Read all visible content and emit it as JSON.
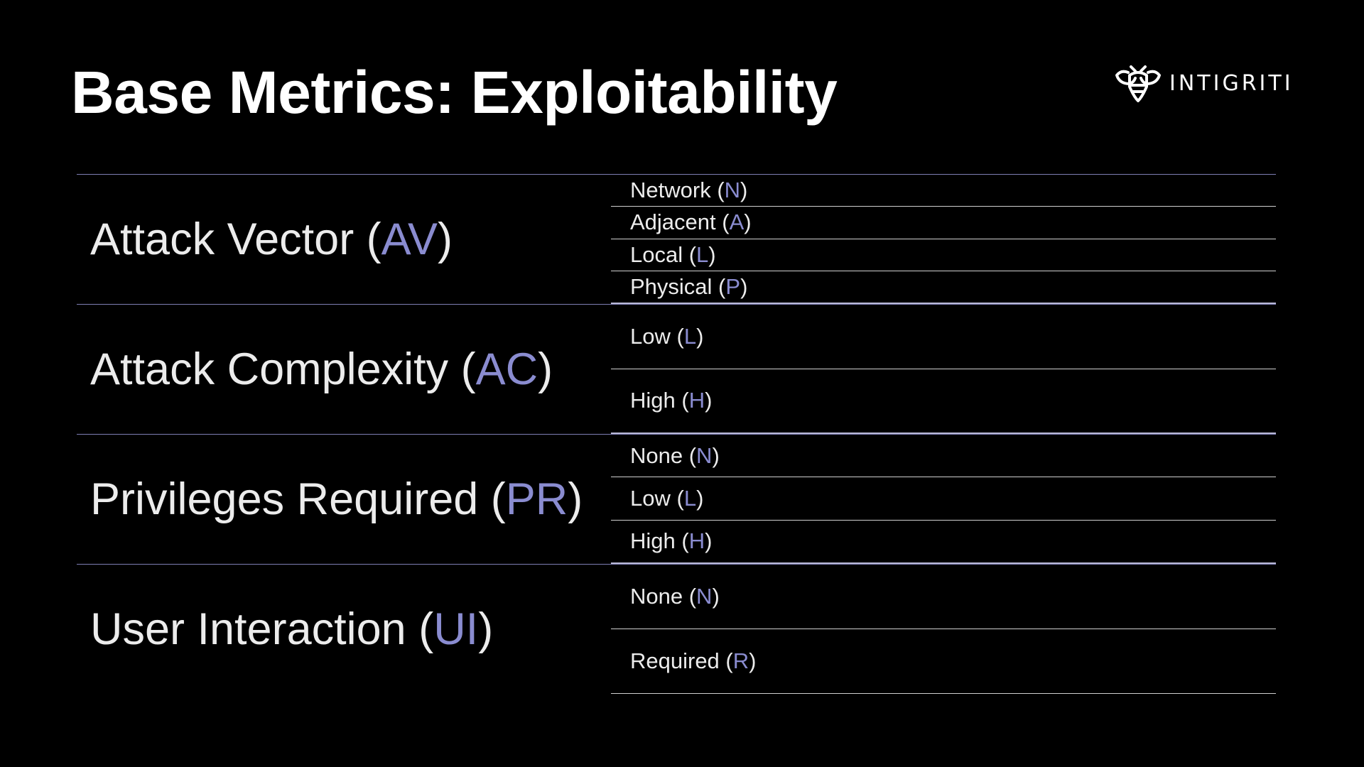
{
  "slide": {
    "title": "Base Metrics: Exploitability",
    "accent_color": "#8a8cd0",
    "background_color": "#000000"
  },
  "logo": {
    "icon": "bee-icon",
    "text": "INTIGRITI"
  },
  "metrics": [
    {
      "name": "Attack Vector",
      "abbr": "AV",
      "options": [
        {
          "label": "Network",
          "abbr": "N"
        },
        {
          "label": "Adjacent",
          "abbr": "A"
        },
        {
          "label": "Local",
          "abbr": "L"
        },
        {
          "label": "Physical",
          "abbr": "P"
        }
      ]
    },
    {
      "name": "Attack Complexity",
      "abbr": "AC",
      "options": [
        {
          "label": "Low",
          "abbr": "L"
        },
        {
          "label": "High",
          "abbr": "H"
        }
      ]
    },
    {
      "name": "Privileges Required",
      "abbr": "PR",
      "options": [
        {
          "label": "None",
          "abbr": "N"
        },
        {
          "label": "Low",
          "abbr": "L"
        },
        {
          "label": "High",
          "abbr": "H"
        }
      ]
    },
    {
      "name": "User Interaction",
      "abbr": "UI",
      "options": [
        {
          "label": "None",
          "abbr": "N"
        },
        {
          "label": "Required",
          "abbr": "R"
        }
      ]
    }
  ]
}
